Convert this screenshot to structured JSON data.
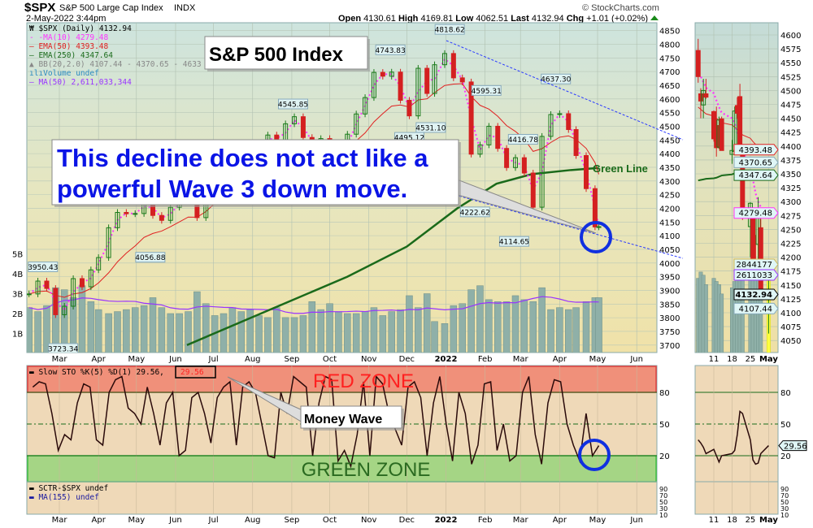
{
  "header": {
    "symbol": "$SPX",
    "name": "S&P 500 Large Cap Index",
    "exchange": "INDX",
    "datetime": "2-May-2022 3:44pm",
    "copyright": "© StockCharts.com",
    "open_label": "Open",
    "open": "4130.61",
    "high_label": "High",
    "high": "4169.81",
    "low_label": "Low",
    "low": "4062.51",
    "last_label": "Last",
    "last": "4132.94",
    "chg_label": "Chg",
    "chg": "+1.01 (+0.02%)"
  },
  "legend": {
    "price": "$SPX (Daily) 4132.94",
    "ma10": "MA(10) 4279.48",
    "ema50": "EMA(50) 4393.48",
    "ema250": "EMA(250) 4347.64",
    "bb": "BB(20,2.0) 4107.44 - 4370.65 - 4633",
    "volume": "Volume undef",
    "vol_ma50": "MA(50) 2,611,033,344",
    "sto": "Slow STO %K(5) %D(1) 29.56,",
    "sto_value": "29.56",
    "sctr": "SCTR-$SPX undef",
    "ma155": "MA(155) undef"
  },
  "annotations": {
    "title_box": "S&P 500 Index",
    "comment_line1": "This decline does not act like a",
    "comment_line2": "powerful Wave 3 down move.",
    "green_line": "Green Line",
    "money_wave": "Money Wave",
    "red_zone": "RED ZONE",
    "green_zone": "GREEN ZONE"
  },
  "colors": {
    "up": "#1a7a1a",
    "down": "#d42020",
    "ma10": "#ff33ff",
    "ema50": "#e02020",
    "ema250": "#1a6a1a",
    "volume": "#8fb0a8",
    "vol_ma": "#9933ff",
    "channel": "#2a3aff",
    "red_zone": "#f0907a",
    "green_zone": "#a5d585",
    "circle": "#1030e0"
  },
  "chart_data": [
    {
      "type": "candlestick",
      "title": "$SPX (Daily)",
      "x_ticks": [
        "Mar",
        "Apr",
        "May",
        "Jun",
        "Jul",
        "Aug",
        "Sep",
        "Oct",
        "Nov",
        "Dec",
        "2022",
        "Feb",
        "Mar",
        "Apr",
        "May",
        "Jun"
      ],
      "x_tick_dates": [
        "2021-03-01",
        "2021-04-01",
        "2021-05-01",
        "2021-06-01",
        "2021-07-01",
        "2021-08-01",
        "2021-09-01",
        "2021-10-01",
        "2021-11-01",
        "2021-12-01",
        "2022-01-01",
        "2022-02-01",
        "2022-03-01",
        "2022-04-01",
        "2022-05-01",
        "2022-06-01"
      ],
      "y_ticks": [
        4850,
        4800,
        4750,
        4700,
        4650,
        4600,
        4550,
        4500,
        4450,
        4400,
        4350,
        4300,
        4250,
        4200,
        4150,
        4100,
        4050,
        4000,
        3950,
        3900,
        3850,
        3800,
        3750,
        3700
      ],
      "ylim": [
        3700,
        4850
      ],
      "volume_ticks": [
        "1B",
        "2B",
        "3B",
        "4B",
        "5B"
      ],
      "weekly_close_volume_b": [
        [
          "2021-02-05",
          3887,
          2.3
        ],
        [
          "2021-02-12",
          3934,
          2.1
        ],
        [
          "2021-02-19",
          3907,
          2.4
        ],
        [
          "2021-02-26",
          3811,
          3.3
        ],
        [
          "2021-03-05",
          3842,
          3.2
        ],
        [
          "2021-03-12",
          3943,
          2.8
        ],
        [
          "2021-03-19",
          3913,
          3.4
        ],
        [
          "2021-03-26",
          3975,
          2.6
        ],
        [
          "2021-04-01",
          4020,
          2.2
        ],
        [
          "2021-04-09",
          4129,
          2.0
        ],
        [
          "2021-04-16",
          4185,
          2.1
        ],
        [
          "2021-04-23",
          4180,
          2.2
        ],
        [
          "2021-04-30",
          4181,
          2.3
        ],
        [
          "2021-05-07",
          4233,
          2.4
        ],
        [
          "2021-05-14",
          4174,
          2.8
        ],
        [
          "2021-05-21",
          4156,
          2.3
        ],
        [
          "2021-05-28",
          4204,
          2.0
        ],
        [
          "2021-06-04",
          4230,
          2.0
        ],
        [
          "2021-06-11",
          4247,
          2.1
        ],
        [
          "2021-06-18",
          4166,
          3.1
        ],
        [
          "2021-06-25",
          4281,
          2.5
        ],
        [
          "2021-07-02",
          4352,
          1.9
        ],
        [
          "2021-07-09",
          4370,
          2.0
        ],
        [
          "2021-07-16",
          4327,
          2.3
        ],
        [
          "2021-07-23",
          4412,
          2.1
        ],
        [
          "2021-07-30",
          4395,
          2.2
        ],
        [
          "2021-08-06",
          4437,
          1.9
        ],
        [
          "2021-08-13",
          4468,
          1.8
        ],
        [
          "2021-08-20",
          4442,
          2.3
        ],
        [
          "2021-08-27",
          4509,
          1.8
        ],
        [
          "2021-09-03",
          4535,
          1.8
        ],
        [
          "2021-09-10",
          4459,
          1.9
        ],
        [
          "2021-09-17",
          4433,
          2.6
        ],
        [
          "2021-09-24",
          4455,
          2.2
        ],
        [
          "2021-10-01",
          4357,
          2.5
        ],
        [
          "2021-10-08",
          4391,
          2.1
        ],
        [
          "2021-10-15",
          4471,
          2.0
        ],
        [
          "2021-10-22",
          4545,
          2.0
        ],
        [
          "2021-10-29",
          4605,
          2.1
        ],
        [
          "2021-11-05",
          4697,
          2.3
        ],
        [
          "2021-11-12",
          4683,
          1.9
        ],
        [
          "2021-11-19",
          4698,
          2.1
        ],
        [
          "2021-11-26",
          4595,
          2.2
        ],
        [
          "2021-12-03",
          4538,
          2.9
        ],
        [
          "2021-12-10",
          4712,
          2.3
        ],
        [
          "2021-12-17",
          4620,
          3.0
        ],
        [
          "2021-12-23",
          4725,
          1.6
        ],
        [
          "2021-12-31",
          4766,
          1.5
        ],
        [
          "2022-01-07",
          4677,
          2.4
        ],
        [
          "2022-01-14",
          4662,
          2.5
        ],
        [
          "2022-01-21",
          4398,
          3.2
        ],
        [
          "2022-01-28",
          4432,
          3.4
        ],
        [
          "2022-02-04",
          4500,
          2.7
        ],
        [
          "2022-02-11",
          4419,
          2.6
        ],
        [
          "2022-02-18",
          4349,
          2.6
        ],
        [
          "2022-02-25",
          4385,
          2.9
        ],
        [
          "2022-03-04",
          4329,
          2.7
        ],
        [
          "2022-03-11",
          4204,
          2.6
        ],
        [
          "2022-03-18",
          4463,
          3.3
        ],
        [
          "2022-03-25",
          4543,
          2.2
        ],
        [
          "2022-04-01",
          4546,
          2.3
        ],
        [
          "2022-04-08",
          4488,
          2.2
        ],
        [
          "2022-04-14",
          4393,
          2.3
        ],
        [
          "2022-04-22",
          4272,
          2.6
        ],
        [
          "2022-04-29",
          4132,
          2.8
        ],
        [
          "2022-05-02",
          4132.94,
          2.8
        ]
      ],
      "ema250": [
        [
          "2021-06-10",
          3700
        ],
        [
          "2021-08-15",
          3830
        ],
        [
          "2021-10-15",
          3950
        ],
        [
          "2021-12-01",
          4060
        ],
        [
          "2022-01-10",
          4200
        ],
        [
          "2022-02-10",
          4290
        ],
        [
          "2022-03-10",
          4325
        ],
        [
          "2022-04-10",
          4340
        ],
        [
          "2022-05-02",
          4347.64
        ]
      ],
      "price_labels": [
        [
          "2021-02-16",
          3950.43,
          "3950.43",
          "above"
        ],
        [
          "2021-03-04",
          3723.34,
          "3723.34",
          "below"
        ],
        [
          "2021-05-12",
          4056.88,
          "4056.88",
          "below"
        ],
        [
          "2021-09-02",
          4545.85,
          "4545.85",
          "above"
        ],
        [
          "2021-11-18",
          4743.83,
          "4743.83",
          "above"
        ],
        [
          "2021-12-03",
          4495.12,
          "4495.12",
          "below"
        ],
        [
          "2021-12-20",
          4531.1,
          "4531.10",
          "below"
        ],
        [
          "2022-01-04",
          4818.62,
          "4818.62",
          "above"
        ],
        [
          "2022-01-24",
          4222.62,
          "4222.62",
          "below"
        ],
        [
          "2022-02-02",
          4595.31,
          "4595.31",
          "above"
        ],
        [
          "2022-02-24",
          4114.65,
          "4114.65",
          "below"
        ],
        [
          "2022-03-03",
          4416.78,
          "4416.78",
          "above"
        ],
        [
          "2022-03-29",
          4637.3,
          "4637.30",
          "above"
        ]
      ]
    },
    {
      "type": "line",
      "title": "Slow STO %K(5) %D(1)",
      "x_start": "2021-02-08",
      "x_end": "2022-05-02",
      "y_ticks": [
        80,
        50,
        20
      ],
      "sctr_ticks": [
        90,
        70,
        50,
        30,
        10
      ],
      "red_zone": [
        80,
        100
      ],
      "green_zone": [
        0,
        20
      ],
      "values": [
        85,
        90,
        88,
        60,
        25,
        40,
        35,
        70,
        88,
        85,
        35,
        30,
        80,
        92,
        95,
        65,
        60,
        50,
        85,
        60,
        30,
        70,
        80,
        20,
        25,
        75,
        80,
        60,
        32,
        75,
        85,
        90,
        30,
        85,
        90,
        80,
        50,
        20,
        18,
        80,
        60,
        95,
        90,
        85,
        20,
        70,
        95,
        92,
        15,
        25,
        10,
        40,
        90,
        20,
        95,
        88,
        60,
        45,
        30,
        85,
        90,
        75,
        20,
        70,
        95,
        50,
        15,
        80,
        60,
        12,
        30,
        88,
        90,
        25,
        50,
        15,
        20,
        80,
        95,
        40,
        12,
        70,
        92,
        90,
        50,
        30,
        15,
        60,
        20,
        29.56
      ]
    },
    {
      "type": "candlestick",
      "title": "$SPX daily zoom",
      "x_ticks": [
        "11",
        "18",
        "25",
        "May"
      ],
      "x_tick_dates": [
        "2022-04-11",
        "2022-04-18",
        "2022-04-25",
        "2022-05-02"
      ],
      "y_ticks": [
        4600,
        4575,
        4550,
        4525,
        4500,
        4475,
        4450,
        4425,
        4400,
        4375,
        4350,
        4325,
        4300,
        4275,
        4250,
        4225,
        4200,
        4175,
        4150,
        4125,
        4100,
        4075,
        4050
      ],
      "ylim": [
        4050,
        4600
      ],
      "ohlc": [
        [
          "2022-04-05",
          4572,
          4593,
          4514,
          4525
        ],
        [
          "2022-04-06",
          4494,
          4504,
          4450,
          4481
        ],
        [
          "2022-04-07",
          4474,
          4521,
          4450,
          4500
        ],
        [
          "2022-04-08",
          4494,
          4521,
          4485,
          4488
        ],
        [
          "2022-04-11",
          4462,
          4464,
          4408,
          4413
        ],
        [
          "2022-04-12",
          4437,
          4471,
          4381,
          4397
        ],
        [
          "2022-04-13",
          4398,
          4453,
          4395,
          4447
        ],
        [
          "2022-04-14",
          4449,
          4453,
          4392,
          4392
        ],
        [
          "2022-04-18",
          4385,
          4411,
          4368,
          4392
        ],
        [
          "2022-04-19",
          4390,
          4471,
          4390,
          4463
        ],
        [
          "2022-04-20",
          4473,
          4488,
          4449,
          4459
        ],
        [
          "2022-04-21",
          4489,
          4512,
          4384,
          4394
        ],
        [
          "2022-04-22",
          4385,
          4385,
          4267,
          4272
        ],
        [
          "2022-04-25",
          4255,
          4299,
          4200,
          4297
        ],
        [
          "2022-04-26",
          4278,
          4278,
          4175,
          4175
        ],
        [
          "2022-04-27",
          4187,
          4240,
          4163,
          4184
        ],
        [
          "2022-04-28",
          4223,
          4308,
          4188,
          4288
        ],
        [
          "2022-04-29",
          4253,
          4269,
          4124,
          4132
        ],
        [
          "2022-05-02",
          4130.61,
          4169.81,
          4062.51,
          4132.94
        ]
      ],
      "ma10": [
        4530,
        4525,
        4515,
        4505,
        4495,
        4482,
        4470,
        4460,
        4450,
        4440,
        4425,
        4410,
        4390,
        4365,
        4340,
        4315,
        4300,
        4290,
        4279.48
      ],
      "ema50": [
        4470,
        4466,
        4462,
        4458,
        4454,
        4450,
        4446,
        4442,
        4438,
        4434,
        4430,
        4426,
        4420,
        4414,
        4408,
        4403,
        4399,
        4396,
        4393.48
      ],
      "ema250": [
        4338,
        4339,
        4340,
        4341,
        4342,
        4343,
        4345,
        4347,
        4349,
        4351,
        4352,
        4352,
        4351,
        4350,
        4349,
        4348,
        4348,
        4348,
        4347.64
      ],
      "volume_b": [
        2.4,
        2.6,
        2.5,
        2.2,
        2.4,
        2.3,
        2.2,
        1.9,
        2.1,
        2.3,
        2.5,
        2.6,
        3.0,
        2.6,
        2.6,
        2.7,
        2.5,
        2.9,
        2.84
      ],
      "tags": {
        "ema50": "4393.48",
        "bb_mid": "4370.65",
        "ema250": "4347.64",
        "ma10": "4279.48",
        "volume": "2844177",
        "vol_ma": "2611033",
        "last": "4132.94",
        "bb_low": "4107.44"
      },
      "sto_values": [
        35,
        32,
        28,
        22,
        26,
        20,
        14,
        20,
        22,
        25,
        40,
        62,
        60,
        35,
        16,
        12,
        13,
        22,
        29.56
      ],
      "sto_tag": "29.56"
    }
  ]
}
